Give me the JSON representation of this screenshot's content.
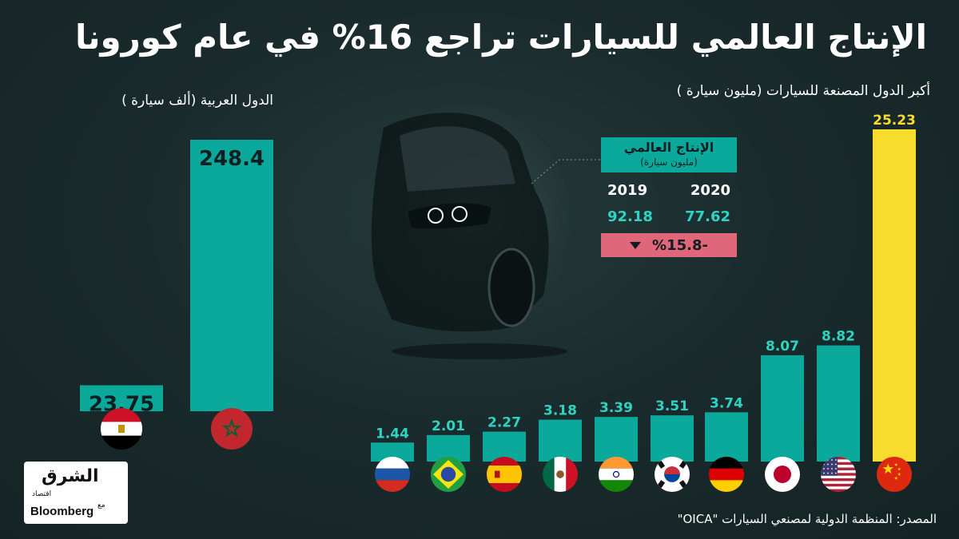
{
  "title": "الإنتاج العالمي للسيارات تراجع 16% في عام كورونا",
  "left_subtitle": "الدول العربية  (ألف سيارة )",
  "right_subtitle": "أكبر الدول المصنعة للسيارات (مليون سيارة )",
  "stats": {
    "heading": "الإنتاج العالمي",
    "unit": "(مليون سيارة)",
    "year_2019": "2019",
    "year_2020": "2020",
    "value_2019": "92.18",
    "value_2020": "77.62",
    "change": "%15.8-"
  },
  "logo": {
    "arabic": "الشرق",
    "sub": "اقتصاد",
    "with": "مع",
    "bloomberg": "Bloomberg"
  },
  "source": "المصدر: المنظمة الدولية لمصنعي السيارات \"OICA\"",
  "colors": {
    "teal": "#0ba99b",
    "yellow": "#f7dc2e",
    "change_bg": "#e0677a",
    "background": "#1a2b2d"
  },
  "chart_data": [
    {
      "type": "bar",
      "categories": [
        "Egypt",
        "Morocco"
      ],
      "values": [
        23.75,
        248.4
      ],
      "labels": [
        "23.75",
        "248.4"
      ],
      "flags": [
        "egypt-flag",
        "morocco-flag"
      ],
      "ylim": [
        0,
        260
      ]
    },
    {
      "type": "bar",
      "categories": [
        "Russia",
        "Brazil",
        "Spain",
        "Mexico",
        "India",
        "South Korea",
        "Germany",
        "Japan",
        "USA",
        "China"
      ],
      "values": [
        1.44,
        2.01,
        2.27,
        3.18,
        3.39,
        3.51,
        3.74,
        8.07,
        8.82,
        25.23
      ],
      "labels": [
        "1.44",
        "2.01",
        "2.27",
        "3.18",
        "3.39",
        "3.51",
        "3.74",
        "8.07",
        "8.82",
        "25.23"
      ],
      "flags": [
        "russia-flag",
        "brazil-flag",
        "spain-flag",
        "mexico-flag",
        "india-flag",
        "south-korea-flag",
        "germany-flag",
        "japan-flag",
        "usa-flag",
        "china-flag"
      ],
      "highlight_color": "#f7dc2e",
      "highlight_index": 9,
      "ylim": [
        0,
        26
      ]
    }
  ]
}
